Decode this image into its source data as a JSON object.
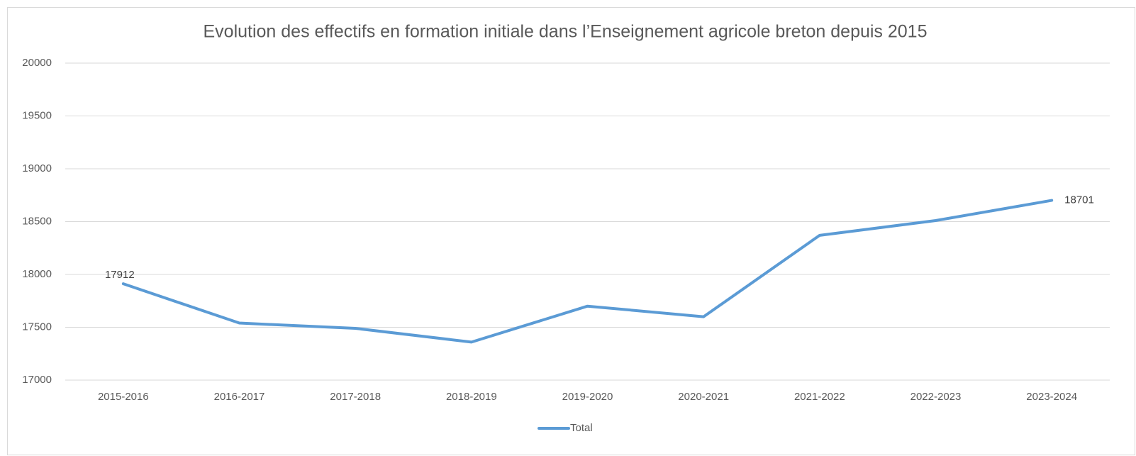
{
  "chart_data": {
    "type": "line",
    "title": "Evolution des effectifs en formation initiale dans l’Enseignement agricole breton depuis 2015",
    "categories": [
      "2015-2016",
      "2016-2017",
      "2017-2018",
      "2018-2019",
      "2019-2020",
      "2020-2021",
      "2021-2022",
      "2022-2023",
      "2023-2024"
    ],
    "series": [
      {
        "name": "Total",
        "color": "#5b9bd5",
        "values": [
          17912,
          17540,
          17490,
          17360,
          17700,
          17600,
          18370,
          18510,
          18701
        ],
        "value_labels": [
          "17912",
          null,
          null,
          null,
          null,
          null,
          null,
          null,
          "18701"
        ]
      }
    ],
    "ylim": [
      17000,
      20000
    ],
    "yticks": [
      17000,
      17500,
      18000,
      18500,
      19000,
      19500,
      20000
    ],
    "grid": true,
    "legend": "bottom"
  }
}
